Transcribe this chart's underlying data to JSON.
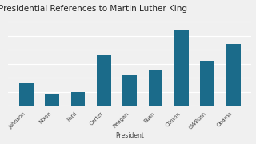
{
  "title": "Presidential References to Martin Luther King",
  "xlabel": "President",
  "ylabel": "",
  "presidents": [
    "Johnson",
    "Nixon",
    "Ford",
    "Carter",
    "Reagan",
    "Bush",
    "Clinton",
    "GWBush",
    "Obama"
  ],
  "values": [
    8,
    4,
    5,
    18,
    11,
    13,
    27,
    16,
    22
  ],
  "bar_color": "#1b6b8a",
  "background_color": "#f0f0f0",
  "ylim": [
    0,
    32
  ],
  "title_fontsize": 7.5,
  "label_fontsize": 5.5,
  "tick_fontsize": 4.8,
  "grid_color": "#ffffff",
  "figwidth": 3.2,
  "figheight": 1.8
}
